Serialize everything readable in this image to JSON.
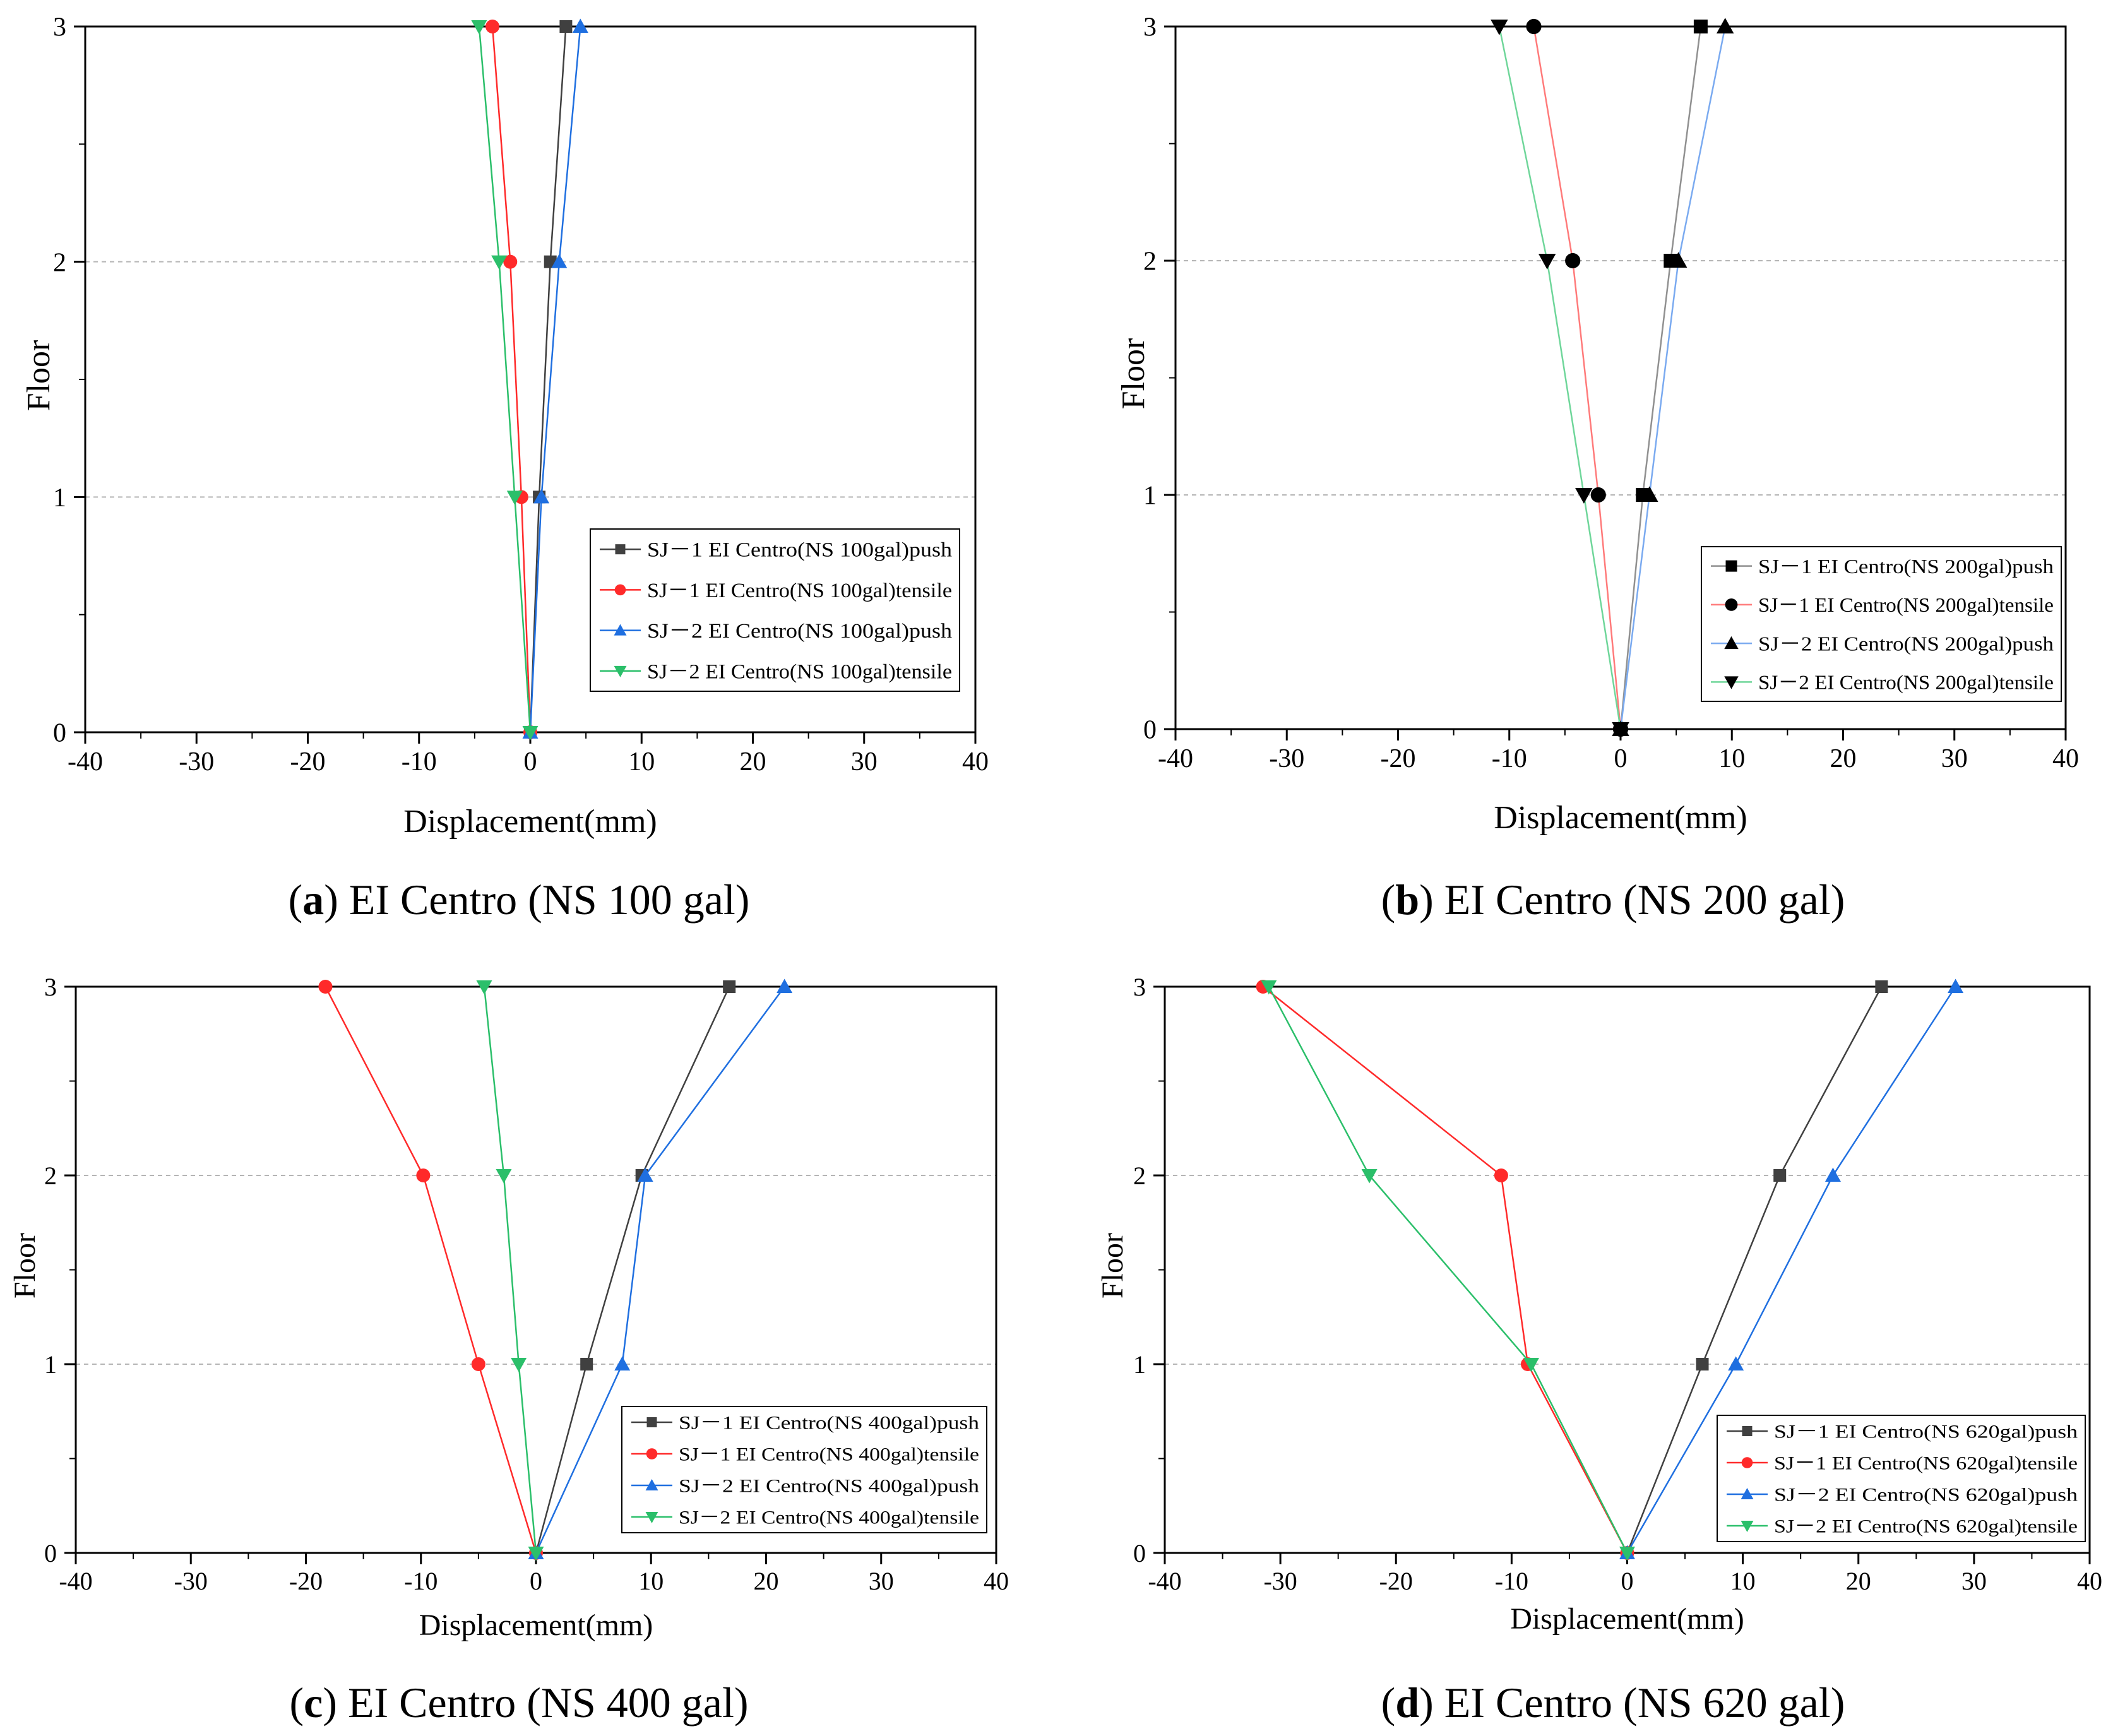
{
  "figure": {
    "panels": [
      {
        "id": "a",
        "caption_letter": "a",
        "caption_text": " EI Centro (NS 100 gal)",
        "caption_open": "(",
        "caption_close": ")"
      },
      {
        "id": "b",
        "caption_letter": "b",
        "caption_text": " EI Centro (NS 200 gal)",
        "caption_open": "(",
        "caption_close": ")"
      },
      {
        "id": "c",
        "caption_letter": "c",
        "caption_text": " EI Centro (NS 400 gal)",
        "caption_open": "(",
        "caption_close": ")"
      },
      {
        "id": "d",
        "caption_letter": "d",
        "caption_text": " EI Centro (NS 620 gal)",
        "caption_open": "(",
        "caption_close": ")"
      }
    ]
  },
  "chart_data": [
    {
      "type": "line",
      "title": "",
      "xlabel": "Displacement(mm)",
      "ylabel": "Floor",
      "xlim": [
        -40,
        40
      ],
      "ylim": [
        0,
        3
      ],
      "xticks": [
        -40,
        -30,
        -20,
        -10,
        0,
        10,
        20,
        30,
        40
      ],
      "yticks": [
        0,
        1,
        2,
        3
      ],
      "grid": "horizontal-dashed",
      "legend_position": "bottom-right",
      "marker_style": "colored",
      "series": [
        {
          "name": "SJ－1 EI Centro(NS 100gal)push",
          "color": "#404040",
          "marker": "square",
          "x": [
            0,
            0.8,
            1.8,
            3.2
          ],
          "y": [
            0,
            1,
            2,
            3
          ]
        },
        {
          "name": "SJ－1 EI Centro(NS 100gal)tensile",
          "color": "#ff2a2a",
          "marker": "circle",
          "x": [
            0,
            -0.8,
            -1.8,
            -3.4
          ],
          "y": [
            0,
            1,
            2,
            3
          ]
        },
        {
          "name": "SJ－2 EI Centro(NS 100gal)push",
          "color": "#1f6fe0",
          "marker": "triangle-up",
          "x": [
            0,
            1.0,
            2.6,
            4.5
          ],
          "y": [
            0,
            1,
            2,
            3
          ]
        },
        {
          "name": "SJ－2 EI Centro(NS 100gal)tensile",
          "color": "#2bbf6a",
          "marker": "triangle-down",
          "x": [
            0,
            -1.4,
            -2.8,
            -4.6
          ],
          "y": [
            0,
            1,
            2,
            3
          ]
        }
      ]
    },
    {
      "type": "line",
      "title": "",
      "xlabel": "Displacement(mm)",
      "ylabel": "Floor",
      "xlim": [
        -40,
        40
      ],
      "ylim": [
        0,
        3
      ],
      "xticks": [
        -40,
        -30,
        -20,
        -10,
        0,
        10,
        20,
        30,
        40
      ],
      "yticks": [
        0,
        1,
        2,
        3
      ],
      "grid": "horizontal-dashed",
      "legend_position": "bottom-right",
      "marker_style": "black",
      "series": [
        {
          "name": "SJ－1 EI Centro(NS 200gal)push",
          "color": "#909090",
          "marker": "square",
          "x": [
            0,
            2.0,
            4.5,
            7.2
          ],
          "y": [
            0,
            1,
            2,
            3
          ]
        },
        {
          "name": "SJ－1 EI Centro(NS 200gal)tensile",
          "color": "#ff7a7a",
          "marker": "circle",
          "x": [
            0,
            -2.0,
            -4.3,
            -7.8
          ],
          "y": [
            0,
            1,
            2,
            3
          ]
        },
        {
          "name": "SJ－2 EI Centro(NS 200gal)push",
          "color": "#7aaaf0",
          "marker": "triangle-up",
          "x": [
            0,
            2.6,
            5.2,
            9.4
          ],
          "y": [
            0,
            1,
            2,
            3
          ]
        },
        {
          "name": "SJ－2 EI Centro(NS 200gal)tensile",
          "color": "#6fd69a",
          "marker": "triangle-down",
          "x": [
            0,
            -3.3,
            -6.6,
            -10.9
          ],
          "y": [
            0,
            1,
            2,
            3
          ]
        }
      ]
    },
    {
      "type": "line",
      "title": "",
      "xlabel": "Displacement(mm)",
      "ylabel": "Floor",
      "xlim": [
        -40,
        40
      ],
      "ylim": [
        0,
        3
      ],
      "xticks": [
        -40,
        -30,
        -20,
        -10,
        0,
        10,
        20,
        30,
        40
      ],
      "yticks": [
        0,
        1,
        2,
        3
      ],
      "grid": "horizontal-dashed",
      "legend_position": "bottom-right",
      "marker_style": "colored",
      "series": [
        {
          "name": "SJ－1 EI Centro(NS 400gal)push",
          "color": "#404040",
          "marker": "square",
          "x": [
            0,
            4.4,
            9.2,
            16.8
          ],
          "y": [
            0,
            1,
            2,
            3
          ]
        },
        {
          "name": "SJ－1 EI Centro(NS 400gal)tensile",
          "color": "#ff2a2a",
          "marker": "circle",
          "x": [
            0,
            -5.0,
            -9.8,
            -18.3
          ],
          "y": [
            0,
            1,
            2,
            3
          ]
        },
        {
          "name": "SJ－2 EI Centro(NS 400gal)push",
          "color": "#1f6fe0",
          "marker": "triangle-up",
          "x": [
            0,
            7.5,
            9.5,
            21.6
          ],
          "y": [
            0,
            1,
            2,
            3
          ]
        },
        {
          "name": "SJ－2 EI Centro(NS 400gal)tensile",
          "color": "#2bbf6a",
          "marker": "triangle-down",
          "x": [
            0,
            -1.5,
            -2.8,
            -4.5
          ],
          "y": [
            0,
            1,
            2,
            3
          ]
        }
      ]
    },
    {
      "type": "line",
      "title": "",
      "xlabel": "Displacement(mm)",
      "ylabel": "Floor",
      "xlim": [
        -40,
        40
      ],
      "ylim": [
        0,
        3
      ],
      "xticks": [
        -40,
        -30,
        -20,
        -10,
        0,
        10,
        20,
        30,
        40
      ],
      "yticks": [
        0,
        1,
        2,
        3
      ],
      "grid": "horizontal-dashed",
      "legend_position": "bottom-right",
      "marker_style": "colored",
      "series": [
        {
          "name": "SJ－1 EI Centro(NS 620gal)push",
          "color": "#404040",
          "marker": "square",
          "x": [
            0,
            6.5,
            13.2,
            22.0
          ],
          "y": [
            0,
            1,
            2,
            3
          ]
        },
        {
          "name": "SJ－1 EI Centro(NS 620gal)tensile",
          "color": "#ff2a2a",
          "marker": "circle",
          "x": [
            0,
            -8.6,
            -10.9,
            -31.5
          ],
          "y": [
            0,
            1,
            2,
            3
          ]
        },
        {
          "name": "SJ－2 EI Centro(NS 620gal)push",
          "color": "#1f6fe0",
          "marker": "triangle-up",
          "x": [
            0,
            9.4,
            17.8,
            28.4
          ],
          "y": [
            0,
            1,
            2,
            3
          ]
        },
        {
          "name": "SJ－2 EI Centro(NS 620gal)tensile",
          "color": "#2bbf6a",
          "marker": "triangle-down",
          "x": [
            0,
            -8.3,
            -22.3,
            -31.0
          ],
          "y": [
            0,
            1,
            2,
            3
          ]
        }
      ]
    }
  ]
}
